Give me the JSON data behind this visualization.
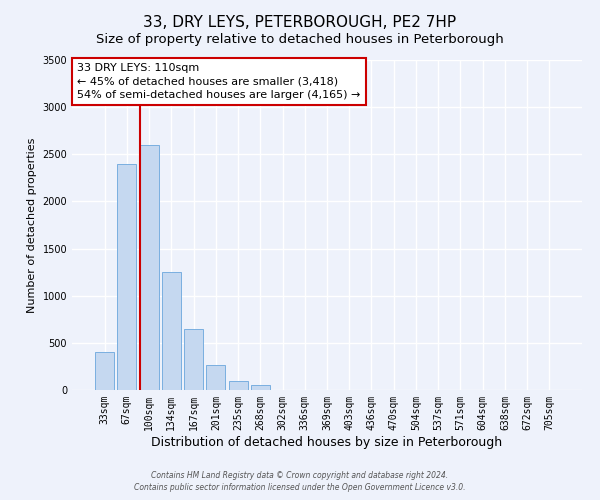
{
  "title": "33, DRY LEYS, PETERBOROUGH, PE2 7HP",
  "subtitle": "Size of property relative to detached houses in Peterborough",
  "xlabel": "Distribution of detached houses by size in Peterborough",
  "ylabel": "Number of detached properties",
  "bar_labels": [
    "33sqm",
    "67sqm",
    "100sqm",
    "134sqm",
    "167sqm",
    "201sqm",
    "235sqm",
    "268sqm",
    "302sqm",
    "336sqm",
    "369sqm",
    "403sqm",
    "436sqm",
    "470sqm",
    "504sqm",
    "537sqm",
    "571sqm",
    "604sqm",
    "638sqm",
    "672sqm",
    "705sqm"
  ],
  "bar_values": [
    400,
    2400,
    2600,
    1250,
    650,
    260,
    100,
    55,
    0,
    0,
    0,
    0,
    0,
    0,
    0,
    0,
    0,
    0,
    0,
    0,
    0
  ],
  "bar_color": "#c5d8f0",
  "bar_edge_color": "#7aafe0",
  "ylim": [
    0,
    3500
  ],
  "yticks": [
    0,
    500,
    1000,
    1500,
    2000,
    2500,
    3000,
    3500
  ],
  "property_line_color": "#cc0000",
  "annotation_line1": "33 DRY LEYS: 110sqm",
  "annotation_line2": "← 45% of detached houses are smaller (3,418)",
  "annotation_line3": "54% of semi-detached houses are larger (4,165) →",
  "annotation_box_color": "#ffffff",
  "annotation_border_color": "#cc0000",
  "footer_line1": "Contains HM Land Registry data © Crown copyright and database right 2024.",
  "footer_line2": "Contains public sector information licensed under the Open Government Licence v3.0.",
  "background_color": "#eef2fb",
  "grid_color": "#ffffff",
  "title_fontsize": 11,
  "subtitle_fontsize": 9.5,
  "tick_fontsize": 7,
  "ylabel_fontsize": 8,
  "xlabel_fontsize": 9,
  "annotation_fontsize": 8,
  "footer_fontsize": 5.5
}
